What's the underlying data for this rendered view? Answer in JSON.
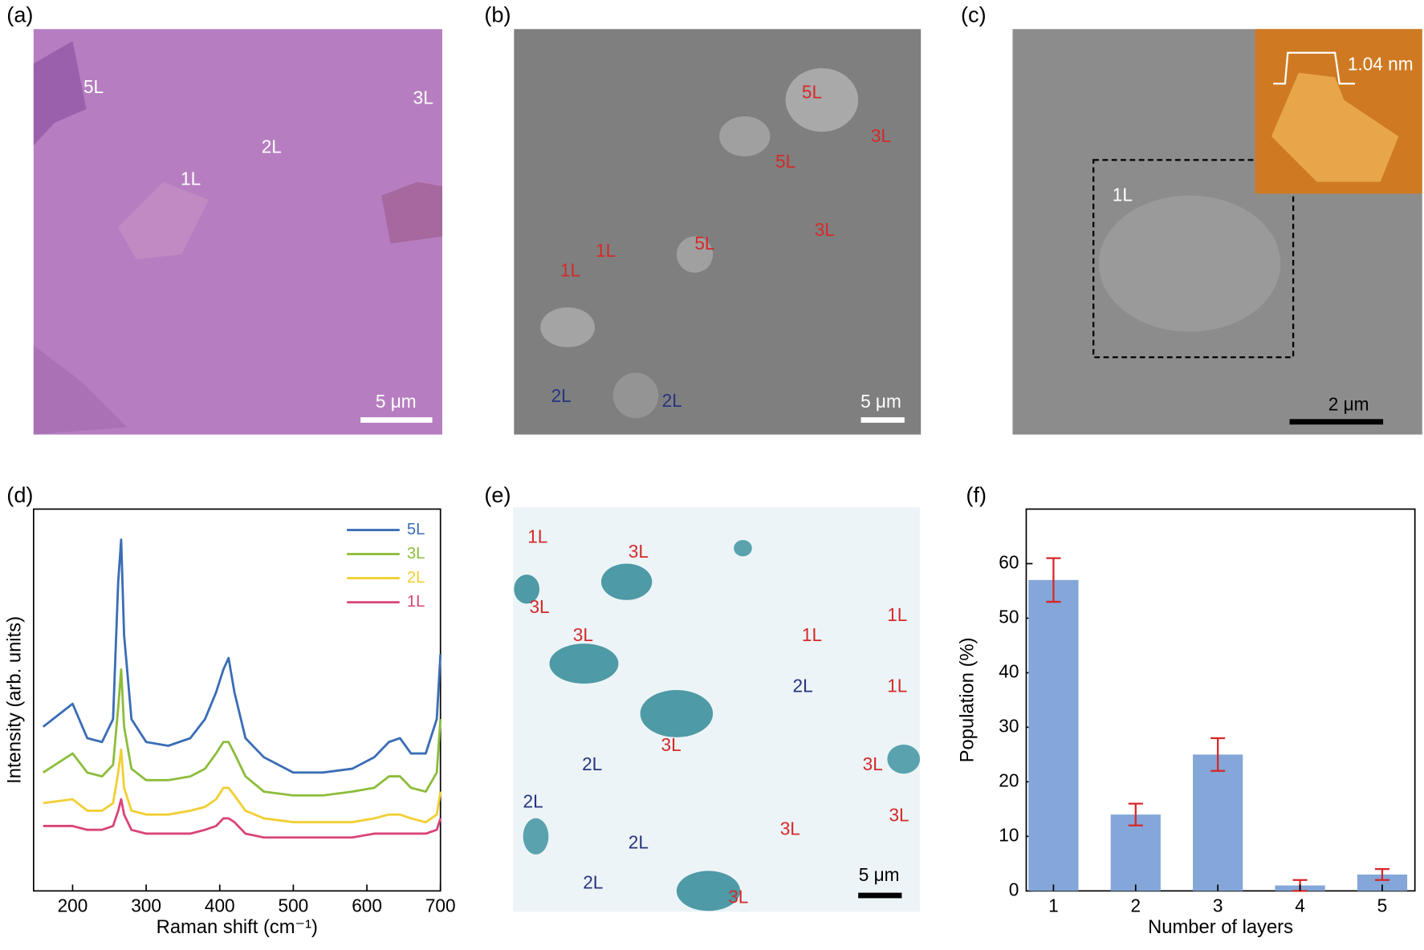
{
  "panels": [
    {
      "label": "(a)",
      "scale_bar": "5 μm",
      "annotations": [
        {
          "text": "5L",
          "color": "#ffffff"
        },
        {
          "text": "3L",
          "color": "#ffffff"
        },
        {
          "text": "2L",
          "color": "#ffffff"
        },
        {
          "text": "1L",
          "color": "#ffffff"
        }
      ]
    },
    {
      "label": "(b)",
      "scale_bar": "5 μm",
      "annotations": [
        {
          "text": "5L",
          "color": "#d42a2a"
        },
        {
          "text": "3L",
          "color": "#d42a2a"
        },
        {
          "text": "5L",
          "color": "#d42a2a"
        },
        {
          "text": "3L",
          "color": "#d42a2a"
        },
        {
          "text": "5L",
          "color": "#d42a2a"
        },
        {
          "text": "1L",
          "color": "#d42a2a"
        },
        {
          "text": "1L",
          "color": "#d42a2a"
        },
        {
          "text": "2L",
          "color": "#27347f"
        },
        {
          "text": "2L",
          "color": "#27347f"
        }
      ]
    },
    {
      "label": "(c)",
      "scale_bar": "2 μm",
      "annotations": [
        {
          "text": "1L",
          "color": "#ffffff"
        },
        {
          "text": "1.04 nm",
          "color": "#ffffff"
        }
      ]
    },
    {
      "label": "(e)",
      "scale_bar": "5 μm",
      "annotations": [
        {
          "text": "1L",
          "color": "#d42a2a"
        },
        {
          "text": "3L",
          "color": "#d42a2a"
        },
        {
          "text": "3L",
          "color": "#d42a2a"
        },
        {
          "text": "3L",
          "color": "#d42a2a"
        },
        {
          "text": "1L",
          "color": "#d42a2a"
        },
        {
          "text": "1L",
          "color": "#d42a2a"
        },
        {
          "text": "2L",
          "color": "#27347f"
        },
        {
          "text": "1L",
          "color": "#d42a2a"
        },
        {
          "text": "3L",
          "color": "#d42a2a"
        },
        {
          "text": "2L",
          "color": "#27347f"
        },
        {
          "text": "3L",
          "color": "#d42a2a"
        },
        {
          "text": "2L",
          "color": "#27347f"
        },
        {
          "text": "3L",
          "color": "#d42a2a"
        },
        {
          "text": "3L",
          "color": "#d42a2a"
        },
        {
          "text": "2L",
          "color": "#27347f"
        },
        {
          "text": "2L",
          "color": "#27347f"
        },
        {
          "text": "3L",
          "color": "#d42a2a"
        }
      ]
    }
  ],
  "chart_data": [
    {
      "type": "line",
      "panel_label": "(d)",
      "x_label": "Raman shift (cm⁻¹)",
      "y_label": "Intensity (arb. units)",
      "x": [
        160,
        200,
        220,
        240,
        255,
        262,
        266,
        270,
        280,
        300,
        330,
        360,
        380,
        395,
        405,
        412,
        420,
        435,
        460,
        500,
        540,
        580,
        610,
        630,
        645,
        660,
        680,
        695,
        700
      ],
      "xlim": [
        147,
        700
      ],
      "xticks": [
        200,
        300,
        400,
        500,
        600,
        700
      ],
      "ylim": [
        0,
        100
      ],
      "series": [
        {
          "name": "5L",
          "color": "#3a6db5",
          "values": [
            43,
            49,
            40,
            39,
            45,
            81,
            92,
            67,
            45,
            39,
            38,
            40,
            45,
            52,
            58,
            61,
            52,
            40,
            35,
            31,
            31,
            32,
            35,
            39,
            40,
            36,
            36,
            45,
            62
          ]
        },
        {
          "name": "3L",
          "color": "#8dbd3b",
          "values": [
            31,
            36,
            31,
            30,
            33,
            48,
            58,
            43,
            32,
            29,
            29,
            30,
            32,
            36,
            39,
            39,
            36,
            30,
            26,
            25,
            25,
            26,
            27,
            30,
            30,
            27,
            26,
            31,
            45
          ]
        },
        {
          "name": "2L",
          "color": "#f2cf33",
          "values": [
            23,
            24,
            21,
            21,
            23,
            31,
            37,
            27,
            21,
            20,
            20,
            21,
            22,
            24,
            27,
            27,
            25,
            21,
            19,
            18,
            18,
            18,
            19,
            20,
            20,
            19,
            18,
            20,
            26
          ]
        },
        {
          "name": "1L",
          "color": "#d9457a",
          "values": [
            17,
            17,
            16,
            16,
            17,
            21,
            24,
            20,
            16,
            15,
            15,
            15,
            16,
            17,
            19,
            19,
            18,
            15,
            14,
            14,
            14,
            14,
            15,
            15,
            15,
            15,
            15,
            16,
            19
          ]
        }
      ]
    },
    {
      "type": "bar",
      "panel_label": "(f)",
      "x_label": "Number of layers",
      "y_label": "Population (%)",
      "categories": [
        "1",
        "2",
        "3",
        "4",
        "5"
      ],
      "values": [
        57,
        14,
        25,
        1,
        3
      ],
      "errors": [
        4,
        2,
        3,
        1,
        1
      ],
      "color": "#84a6d8",
      "error_color": "#d62728",
      "ylim": [
        0,
        70
      ],
      "yticks": [
        0,
        10,
        20,
        30,
        40,
        50,
        60
      ]
    }
  ]
}
